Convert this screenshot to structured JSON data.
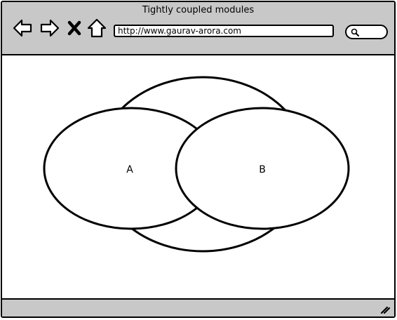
{
  "window": {
    "title": "Tightly coupled modules"
  },
  "toolbar": {
    "back_icon": "arrow-left-icon",
    "forward_icon": "arrow-right-icon",
    "stop_icon": "close-icon",
    "home_icon": "home-icon",
    "url": "http://www.gaurav-arora.com",
    "search_icon": "search-icon",
    "search_value": ""
  },
  "diagram": {
    "module_a": "A",
    "module_b": "B"
  },
  "statusbar": {
    "grip_icon": "resize-grip-icon"
  }
}
